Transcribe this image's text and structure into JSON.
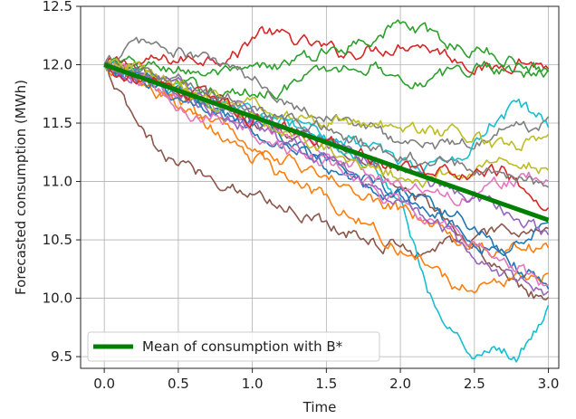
{
  "chart_data": {
    "type": "line",
    "xlabel": "Time",
    "ylabel": "Forecasted consumption (MWh)",
    "xlim": [
      -0.16,
      3.07
    ],
    "ylim": [
      9.4,
      12.5
    ],
    "xticks": [
      0.0,
      0.5,
      1.0,
      1.5,
      2.0,
      2.5,
      3.0
    ],
    "xtick_labels": [
      "0.0",
      "0.5",
      "1.0",
      "1.5",
      "2.0",
      "2.5",
      "3.0"
    ],
    "yticks": [
      9.5,
      10.0,
      10.5,
      11.0,
      11.5,
      12.0,
      12.5
    ],
    "ytick_labels": [
      "9.5",
      "10.0",
      "10.5",
      "11.0",
      "11.5",
      "12.0",
      "12.5"
    ],
    "grid": true,
    "legend": {
      "position": "bottom-left",
      "entries": [
        "Mean of consumption with B*"
      ]
    },
    "mean_series": {
      "name": "Mean of consumption with B*",
      "color": "#008000",
      "x": [
        0.0,
        3.0
      ],
      "y": [
        12.0,
        10.67
      ]
    },
    "series": [
      {
        "color": "#d62728",
        "x": [
          0,
          0.3,
          0.6,
          0.9,
          1.05,
          1.3,
          1.6,
          1.9,
          2.1,
          2.4,
          2.6,
          2.8,
          3.0
        ],
        "y": [
          12.0,
          12.02,
          12.05,
          12.1,
          12.3,
          12.2,
          12.1,
          12.15,
          12.2,
          12.05,
          11.95,
          12.05,
          11.98
        ]
      },
      {
        "color": "#2ca02c",
        "x": [
          0,
          0.3,
          0.6,
          0.9,
          1.2,
          1.5,
          1.8,
          2.0,
          2.2,
          2.4,
          2.6,
          2.8,
          3.0
        ],
        "y": [
          12.0,
          11.98,
          11.95,
          11.9,
          12.0,
          12.1,
          12.25,
          12.35,
          12.25,
          12.15,
          12.1,
          12.02,
          11.95
        ]
      },
      {
        "color": "#2ca02c",
        "x": [
          0,
          0.3,
          0.6,
          0.9,
          1.2,
          1.5,
          1.8,
          2.0,
          2.2,
          2.4,
          2.6,
          2.8,
          3.0
        ],
        "y": [
          12.0,
          11.9,
          11.8,
          11.75,
          11.8,
          11.95,
          12.0,
          11.9,
          11.85,
          11.95,
          12.0,
          11.95,
          11.92
        ]
      },
      {
        "color": "#7f7f7f",
        "x": [
          0,
          0.25,
          0.5,
          0.8,
          1.1,
          1.4,
          1.7,
          2.0,
          2.2,
          2.5,
          2.7,
          3.0
        ],
        "y": [
          12.0,
          12.2,
          12.1,
          12.0,
          11.8,
          11.6,
          11.5,
          11.35,
          11.3,
          11.35,
          11.45,
          11.5
        ]
      },
      {
        "color": "#8c564b",
        "x": [
          0,
          0.2,
          0.4,
          0.6,
          0.9,
          1.2,
          1.5,
          1.8,
          2.1,
          2.4,
          2.7,
          3.0
        ],
        "y": [
          12.0,
          11.5,
          11.2,
          11.1,
          10.95,
          10.8,
          10.65,
          10.5,
          10.4,
          10.5,
          10.55,
          10.6
        ]
      },
      {
        "color": "#8c564b",
        "x": [
          0,
          0.3,
          0.6,
          0.9,
          1.2,
          1.5,
          1.8,
          2.1,
          2.4,
          2.7,
          3.0
        ],
        "y": [
          12.0,
          11.9,
          11.75,
          11.6,
          11.45,
          11.3,
          11.15,
          10.9,
          10.6,
          10.2,
          9.95
        ]
      },
      {
        "color": "#17becf",
        "x": [
          0,
          0.3,
          0.6,
          0.9,
          1.2,
          1.5,
          1.8,
          2.0,
          2.15,
          2.3,
          2.5,
          2.65,
          2.8,
          2.95,
          3.0
        ],
        "y": [
          12.0,
          11.85,
          11.7,
          11.55,
          11.5,
          11.35,
          11.15,
          10.9,
          10.2,
          9.7,
          9.55,
          9.6,
          9.5,
          9.8,
          9.95
        ]
      },
      {
        "color": "#17becf",
        "x": [
          0,
          0.3,
          0.6,
          0.9,
          1.2,
          1.5,
          1.8,
          2.1,
          2.4,
          2.6,
          2.8,
          3.0
        ],
        "y": [
          12.0,
          11.85,
          11.7,
          11.6,
          11.5,
          11.4,
          11.3,
          11.1,
          11.2,
          11.5,
          11.65,
          11.5
        ]
      },
      {
        "color": "#ff7f0e",
        "x": [
          0,
          0.3,
          0.6,
          0.9,
          1.2,
          1.5,
          1.8,
          2.1,
          2.4,
          2.7,
          3.0
        ],
        "y": [
          12.0,
          11.8,
          11.55,
          11.3,
          11.05,
          10.85,
          10.6,
          10.35,
          10.1,
          10.15,
          10.2
        ]
      },
      {
        "color": "#ff7f0e",
        "x": [
          0,
          0.3,
          0.6,
          0.9,
          1.2,
          1.5,
          1.8,
          2.1,
          2.4,
          2.7,
          3.0
        ],
        "y": [
          12.0,
          11.8,
          11.6,
          11.4,
          11.2,
          11.05,
          10.85,
          10.7,
          10.5,
          10.4,
          10.45
        ]
      },
      {
        "color": "#1f77b4",
        "x": [
          0,
          0.3,
          0.6,
          0.9,
          1.2,
          1.5,
          1.8,
          2.1,
          2.4,
          2.7,
          3.0
        ],
        "y": [
          12.0,
          11.85,
          11.7,
          11.5,
          11.35,
          11.15,
          10.95,
          10.8,
          10.7,
          10.4,
          10.6
        ]
      },
      {
        "color": "#1f77b4",
        "x": [
          0,
          0.3,
          0.6,
          0.9,
          1.2,
          1.5,
          1.8,
          2.1,
          2.4,
          2.7,
          3.0
        ],
        "y": [
          12.0,
          11.85,
          11.7,
          11.55,
          11.4,
          11.2,
          11.0,
          10.85,
          10.6,
          10.35,
          10.1
        ]
      },
      {
        "color": "#e377c2",
        "x": [
          0,
          0.3,
          0.6,
          0.9,
          1.2,
          1.5,
          1.8,
          2.1,
          2.4,
          2.7,
          3.0
        ],
        "y": [
          12.0,
          11.8,
          11.6,
          11.5,
          11.3,
          11.15,
          10.95,
          10.75,
          10.55,
          10.35,
          10.1
        ]
      },
      {
        "color": "#e377c2",
        "x": [
          0,
          0.3,
          0.6,
          0.9,
          1.2,
          1.5,
          1.8,
          2.1,
          2.4,
          2.7,
          3.0
        ],
        "y": [
          12.0,
          11.85,
          11.7,
          11.55,
          11.4,
          11.25,
          11.1,
          10.95,
          10.85,
          11.0,
          11.05
        ]
      },
      {
        "color": "#9467bd",
        "x": [
          0,
          0.3,
          0.6,
          0.9,
          1.2,
          1.5,
          1.8,
          2.1,
          2.4,
          2.7,
          3.0
        ],
        "y": [
          12.0,
          11.85,
          11.7,
          11.5,
          11.35,
          11.2,
          11.0,
          10.8,
          10.5,
          10.2,
          10.05
        ]
      },
      {
        "color": "#9467bd",
        "x": [
          0,
          0.3,
          0.6,
          0.9,
          1.2,
          1.5,
          1.8,
          2.1,
          2.4,
          2.7,
          3.0
        ],
        "y": [
          12.0,
          11.9,
          11.8,
          11.65,
          11.5,
          11.35,
          11.2,
          11.05,
          10.9,
          10.75,
          10.55
        ]
      },
      {
        "color": "#bcbd22",
        "x": [
          0,
          0.3,
          0.6,
          0.9,
          1.2,
          1.5,
          1.8,
          2.1,
          2.4,
          2.7,
          3.0
        ],
        "y": [
          12.0,
          11.95,
          11.8,
          11.7,
          11.6,
          11.5,
          11.5,
          11.45,
          11.4,
          11.3,
          11.35
        ]
      },
      {
        "color": "#bcbd22",
        "x": [
          0,
          0.3,
          0.6,
          0.9,
          1.2,
          1.5,
          1.8,
          2.1,
          2.4,
          2.7,
          3.0
        ],
        "y": [
          12.0,
          11.9,
          11.75,
          11.6,
          11.45,
          11.3,
          11.15,
          11.0,
          11.1,
          11.2,
          11.1
        ]
      },
      {
        "color": "#d62728",
        "x": [
          0,
          0.3,
          0.6,
          0.9,
          1.2,
          1.5,
          1.8,
          2.1,
          2.4,
          2.7,
          3.0
        ],
        "y": [
          12.0,
          11.85,
          11.75,
          11.6,
          11.45,
          11.35,
          11.2,
          11.1,
          11.05,
          11.1,
          10.75
        ]
      },
      {
        "color": "#7f7f7f",
        "x": [
          0,
          0.3,
          0.6,
          0.9,
          1.2,
          1.5,
          1.8,
          2.1,
          2.4,
          2.7,
          3.0
        ],
        "y": [
          12.0,
          11.95,
          11.85,
          11.7,
          11.55,
          11.45,
          11.3,
          11.2,
          11.15,
          11.05,
          10.95
        ]
      }
    ]
  }
}
